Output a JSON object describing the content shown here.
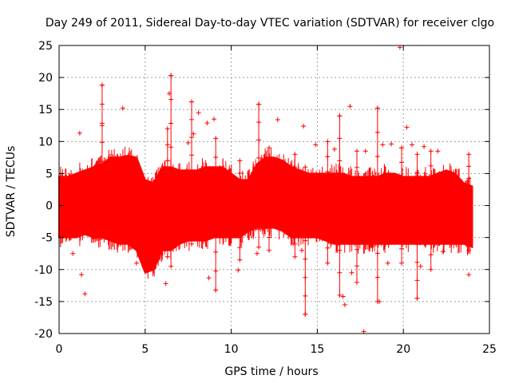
{
  "chart_data": {
    "type": "scatter",
    "title": "Day 249 of 2011, Sidereal Day-to-day VTEC variation (SDTVAR) for receiver clgo",
    "xlabel": "GPS time / hours",
    "ylabel": "SDTVAR / TECUs",
    "xlim": [
      0,
      25
    ],
    "ylim": [
      -20,
      25
    ],
    "xticks": [
      0,
      5,
      10,
      15,
      20,
      25
    ],
    "yticks": [
      -20,
      -15,
      -10,
      -5,
      0,
      5,
      10,
      15,
      20,
      25
    ],
    "grid": true,
    "marker": "+",
    "color": "#ff0000",
    "series": [
      {
        "name": "SDTVAR",
        "band_x": [
          0.0,
          0.5,
          1.0,
          1.5,
          2.0,
          2.5,
          3.0,
          3.5,
          4.0,
          4.5,
          5.0,
          5.5,
          6.0,
          6.5,
          7.0,
          7.5,
          8.0,
          8.5,
          9.0,
          9.5,
          10.0,
          10.5,
          11.0,
          11.5,
          12.0,
          12.5,
          13.0,
          13.5,
          14.0,
          14.5,
          15.0,
          15.5,
          16.0,
          16.5,
          17.0,
          17.5,
          18.0,
          18.5,
          19.0,
          19.5,
          20.0,
          20.5,
          21.0,
          21.5,
          22.0,
          22.5,
          23.0,
          23.5,
          24.0
        ],
        "band_upper": [
          4.5,
          4.5,
          5.0,
          5.5,
          6.0,
          6.5,
          7.5,
          7.5,
          7.8,
          7.5,
          4.0,
          3.5,
          6.0,
          6.0,
          5.5,
          5.5,
          5.5,
          6.0,
          6.0,
          6.0,
          5.0,
          4.0,
          4.0,
          6.5,
          7.5,
          7.5,
          7.0,
          6.0,
          5.5,
          5.0,
          5.0,
          5.0,
          5.0,
          5.0,
          4.5,
          4.5,
          4.5,
          4.5,
          5.0,
          5.0,
          4.5,
          4.5,
          4.5,
          4.5,
          5.0,
          5.5,
          5.0,
          3.5,
          3.0
        ],
        "band_lower": [
          -5.0,
          -5.0,
          -5.0,
          -4.5,
          -5.0,
          -5.0,
          -5.5,
          -6.0,
          -6.0,
          -7.0,
          -10.5,
          -10.0,
          -7.0,
          -7.0,
          -6.0,
          -5.5,
          -5.5,
          -5.5,
          -5.0,
          -5.0,
          -5.0,
          -5.0,
          -4.0,
          -3.5,
          -3.5,
          -3.5,
          -4.0,
          -5.0,
          -5.0,
          -5.0,
          -5.0,
          -5.5,
          -6.0,
          -6.0,
          -6.0,
          -6.0,
          -6.0,
          -6.0,
          -6.0,
          -6.0,
          -6.0,
          -6.0,
          -6.0,
          -6.0,
          -6.0,
          -6.0,
          -6.0,
          -6.0,
          -6.5
        ],
        "outliers": [
          [
            1.2,
            11.3
          ],
          [
            1.5,
            -13.8
          ],
          [
            1.3,
            -10.8
          ],
          [
            2.5,
            18.8
          ],
          [
            2.5,
            12.5
          ],
          [
            3.7,
            15.2
          ],
          [
            6.2,
            -12.2
          ],
          [
            6.5,
            20.3
          ],
          [
            6.4,
            17.5
          ],
          [
            7.7,
            16.2
          ],
          [
            7.8,
            11.2
          ],
          [
            8.1,
            14.5
          ],
          [
            8.6,
            12.9
          ],
          [
            8.7,
            -11.3
          ],
          [
            9.0,
            13.5
          ],
          [
            9.1,
            -13.2
          ],
          [
            10.4,
            -10.1
          ],
          [
            11.6,
            15.8
          ],
          [
            12.7,
            13.4
          ],
          [
            14.2,
            12.4
          ],
          [
            14.3,
            -17.0
          ],
          [
            14.9,
            9.5
          ],
          [
            16.3,
            14.0
          ],
          [
            16.5,
            -14.2
          ],
          [
            16.6,
            -15.5
          ],
          [
            16.9,
            15.5
          ],
          [
            17.7,
            -19.7
          ],
          [
            17.8,
            8.5
          ],
          [
            18.5,
            15.2
          ],
          [
            18.6,
            -15.0
          ],
          [
            18.8,
            9.5
          ],
          [
            19.3,
            9.6
          ],
          [
            19.8,
            24.7
          ],
          [
            19.9,
            9.0
          ],
          [
            20.2,
            12.2
          ],
          [
            20.5,
            9.5
          ],
          [
            20.8,
            -14.5
          ],
          [
            21.2,
            9.2
          ],
          [
            22.0,
            8.5
          ],
          [
            23.8,
            -10.8
          ],
          [
            0.8,
            -7.5
          ],
          [
            4.5,
            -9.0
          ],
          [
            7.5,
            9.8
          ],
          [
            11.5,
            -7.5
          ],
          [
            14.1,
            -7.0
          ],
          [
            16.0,
            8.8
          ],
          [
            17.0,
            -10.5
          ],
          [
            19.1,
            -9.0
          ],
          [
            21.0,
            -9.5
          ],
          [
            22.3,
            -7.2
          ]
        ],
        "spikes": [
          [
            2.5,
            -5.0,
            18.8
          ],
          [
            6.5,
            -9.5,
            20.3
          ],
          [
            6.3,
            -8.0,
            12.0
          ],
          [
            7.7,
            -6.0,
            16.2
          ],
          [
            9.1,
            -13.2,
            10.5
          ],
          [
            11.6,
            -6.5,
            15.8
          ],
          [
            14.3,
            -17.0,
            6.0
          ],
          [
            16.3,
            -14.0,
            14.0
          ],
          [
            18.5,
            -15.0,
            15.2
          ],
          [
            19.9,
            -9.0,
            9.0
          ],
          [
            20.8,
            -14.5,
            8.0
          ],
          [
            23.8,
            -7.0,
            8.0
          ],
          [
            10.5,
            -8.5,
            7.0
          ],
          [
            12.2,
            -7.0,
            9.0
          ],
          [
            13.7,
            -8.0,
            8.0
          ],
          [
            15.6,
            -9.0,
            10.0
          ],
          [
            17.3,
            -12.0,
            8.5
          ],
          [
            21.6,
            -10.0,
            8.5
          ]
        ]
      }
    ]
  }
}
